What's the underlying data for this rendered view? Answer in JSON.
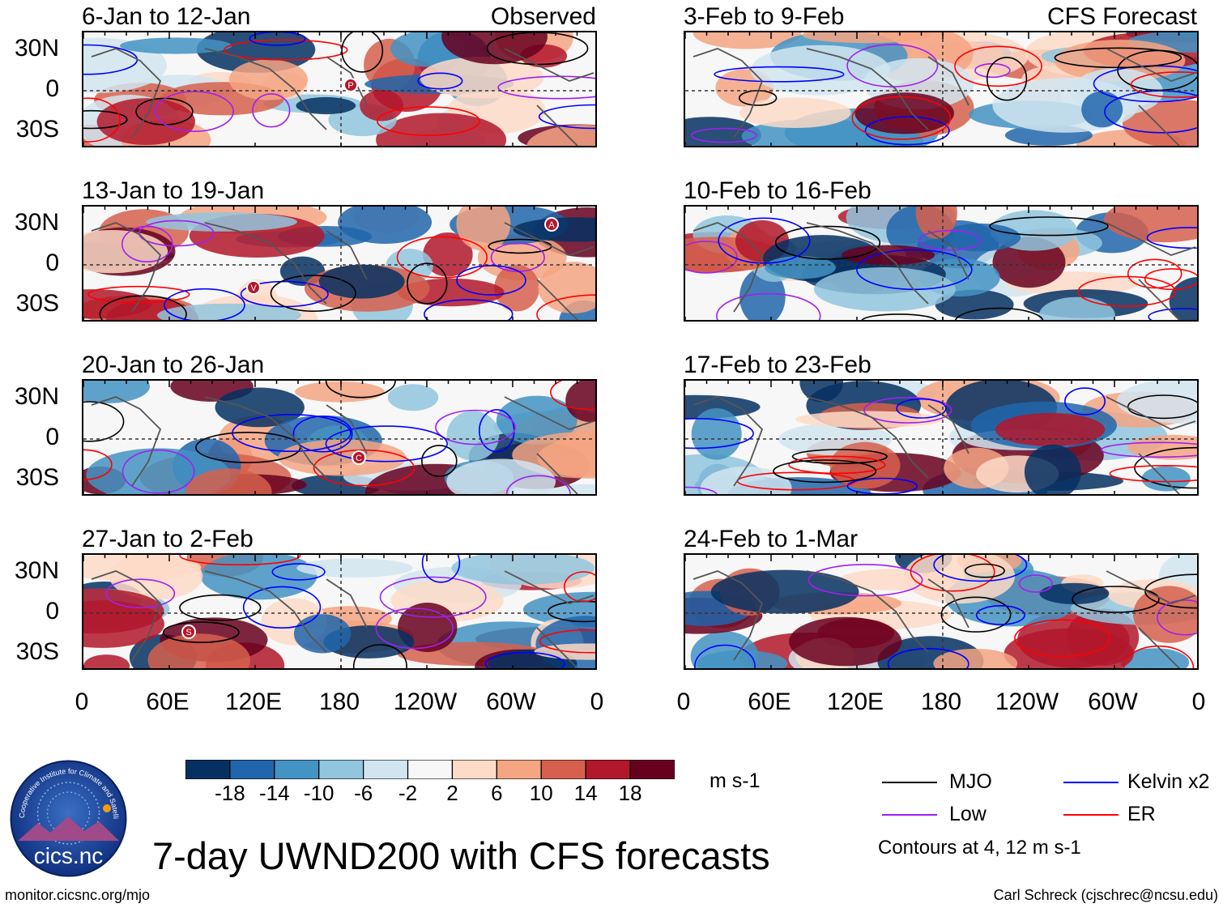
{
  "chart_data": {
    "type": "heatmap",
    "title": "7-day UWND200 with CFS forecasts",
    "units": "m s-1",
    "contour_note": "Contours at 4, 12 m s-1",
    "y_ticks": [
      "30N",
      "0",
      "30S"
    ],
    "x_ticks": [
      "0",
      "60E",
      "120E",
      "180",
      "120W",
      "60W",
      "0"
    ],
    "columns": [
      {
        "label": "Observed",
        "panels": [
          {
            "period": "6-Jan to 12-Jan",
            "marker": "P"
          },
          {
            "period": "13-Jan to 19-Jan",
            "marker": "A",
            "marker2": "V"
          },
          {
            "period": "20-Jan to 26-Jan",
            "marker": "C"
          },
          {
            "period": "27-Jan to 2-Feb",
            "marker": "S"
          }
        ]
      },
      {
        "label": "CFS Forecast",
        "panels": [
          {
            "period": "3-Feb to 9-Feb"
          },
          {
            "period": "10-Feb to 16-Feb"
          },
          {
            "period": "17-Feb to 23-Feb"
          },
          {
            "period": "24-Feb to 1-Mar"
          }
        ]
      }
    ],
    "colorbar": {
      "ticks": [
        "-18",
        "-14",
        "-10",
        "-6",
        "-2",
        "2",
        "6",
        "10",
        "14",
        "18"
      ],
      "colors": [
        "#053061",
        "#2166ac",
        "#4393c3",
        "#92c5de",
        "#d1e5f0",
        "#f7f7f7",
        "#fddbc7",
        "#f4a582",
        "#d6604d",
        "#b2182b",
        "#67001f"
      ]
    },
    "legend": [
      {
        "name": "MJO",
        "color": "#000000"
      },
      {
        "name": "Kelvin x2",
        "color": "#0000ff"
      },
      {
        "name": "Low",
        "color": "#a020f0"
      },
      {
        "name": "ER",
        "color": "#ff0000"
      }
    ]
  },
  "footer": {
    "left": "monitor.cicsnc.org/mjo",
    "right": "Carl Schreck (cjschrec@ncsu.edu)"
  },
  "logo": {
    "text": "cics.nc",
    "ring_text": "Cooperative Institute for Climate and Satellites"
  }
}
